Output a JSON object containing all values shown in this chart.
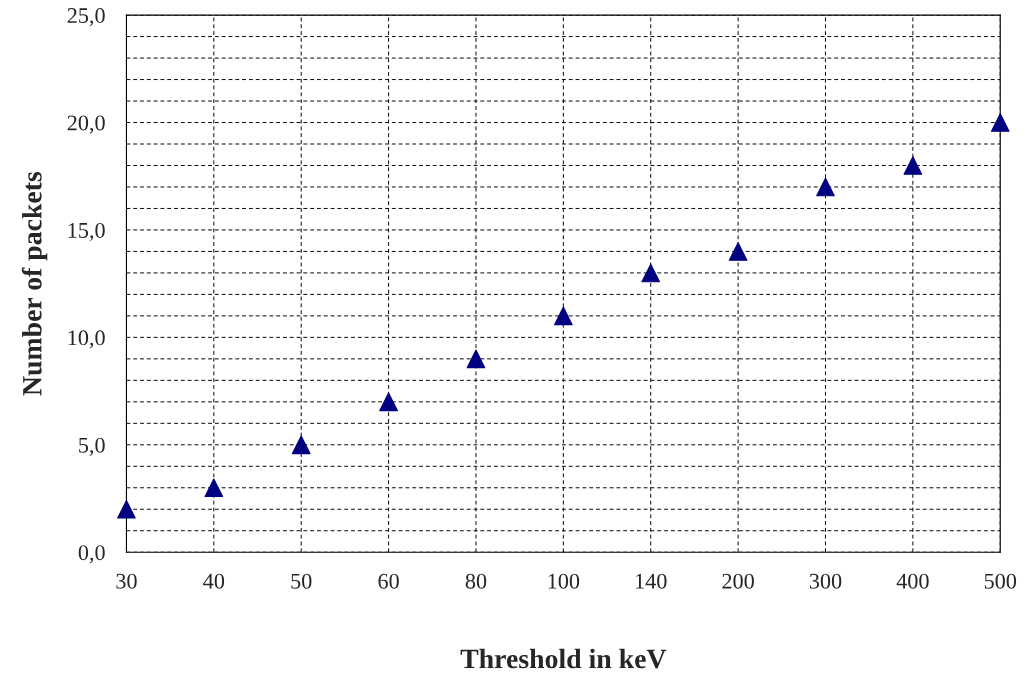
{
  "chart_data": {
    "type": "scatter",
    "xlabel": "Threshold in keV",
    "ylabel": "Number of packets",
    "categories": [
      "30",
      "40",
      "50",
      "60",
      "80",
      "100",
      "140",
      "200",
      "300",
      "400",
      "500"
    ],
    "series": [
      {
        "color": "#000080",
        "values": [
          2,
          3,
          5,
          7,
          9,
          11,
          13,
          14,
          17,
          18,
          20
        ]
      }
    ],
    "ylim": [
      0,
      25
    ],
    "yticks": [
      {
        "value": 0,
        "label": "0,0"
      },
      {
        "value": 1,
        "label": null
      },
      {
        "value": 2,
        "label": null
      },
      {
        "value": 3,
        "label": null
      },
      {
        "value": 4,
        "label": null
      },
      {
        "value": 5,
        "label": "5,0"
      },
      {
        "value": 6,
        "label": null
      },
      {
        "value": 7,
        "label": null
      },
      {
        "value": 8,
        "label": null
      },
      {
        "value": 9,
        "label": null
      },
      {
        "value": 10,
        "label": "10,0"
      },
      {
        "value": 11,
        "label": null
      },
      {
        "value": 12,
        "label": null
      },
      {
        "value": 13,
        "label": null
      },
      {
        "value": 14,
        "label": null
      },
      {
        "value": 15,
        "label": "15,0"
      },
      {
        "value": 16,
        "label": null
      },
      {
        "value": 17,
        "label": null
      },
      {
        "value": 18,
        "label": null
      },
      {
        "value": 19,
        "label": null
      },
      {
        "value": 20,
        "label": "20,0"
      },
      {
        "value": 21,
        "label": null
      },
      {
        "value": 22,
        "label": null
      },
      {
        "value": 23,
        "label": null
      },
      {
        "value": 24,
        "label": null
      },
      {
        "value": 25,
        "label": "25,0"
      }
    ],
    "grid": true,
    "marker": "triangle"
  }
}
